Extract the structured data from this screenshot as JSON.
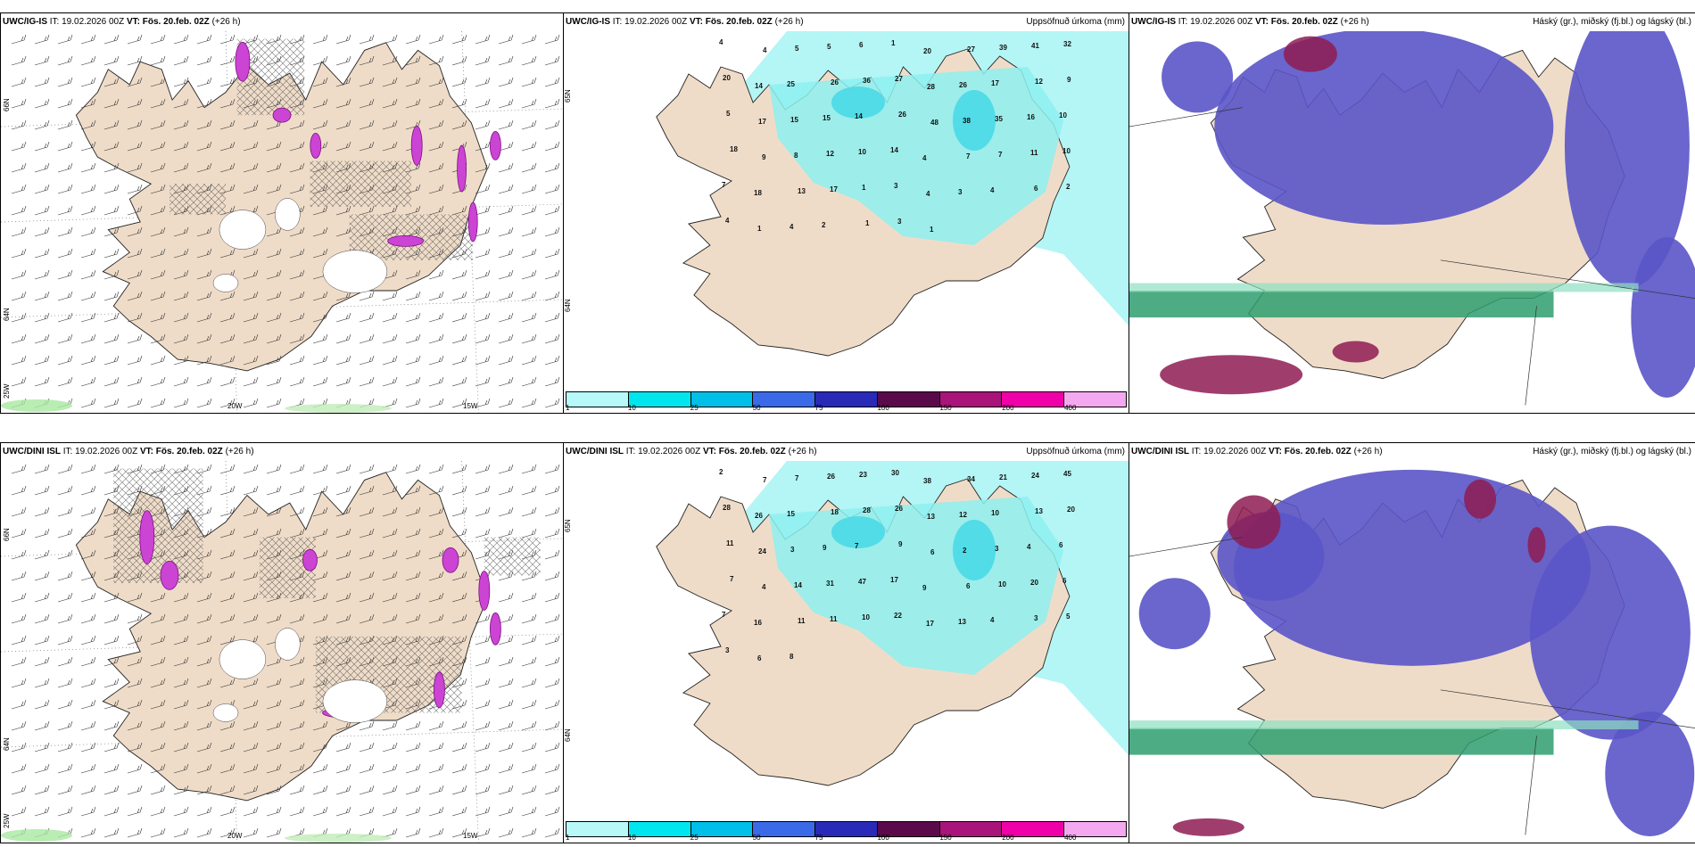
{
  "panels": [
    {
      "model": "UWC/IG-IS",
      "it_label": "IT:",
      "it_value": "19.02.2026 00Z",
      "vt_label": "VT:",
      "vt_value": "Fös. 20.feb. 02Z",
      "lead": "(+26 h)",
      "right_title": "",
      "lat_labels": [
        "66N",
        "64N",
        "25W"
      ],
      "lon_labels": [
        "20W",
        "15W"
      ]
    },
    {
      "model": "UWC/IG-IS",
      "it_label": "IT:",
      "it_value": "19.02.2026 00Z",
      "vt_label": "VT:",
      "vt_value": "Fös. 20.feb. 02Z",
      "lead": "(+26 h)",
      "right_title": "Uppsöfnuð úrkoma (mm)",
      "side_labels": [
        "65N",
        "64N"
      ],
      "precip_values": [
        "4",
        "4",
        "5",
        "5",
        "6",
        "1",
        "20",
        "27",
        "39",
        "41",
        "32",
        "20",
        "14",
        "25",
        "26",
        "36",
        "27",
        "28",
        "26",
        "17",
        "12",
        "9",
        "5",
        "17",
        "15",
        "15",
        "14",
        "26",
        "48",
        "38",
        "35",
        "16",
        "10",
        "18",
        "9",
        "8",
        "12",
        "10",
        "14",
        "4",
        "7",
        "7",
        "11",
        "10",
        "7",
        "18",
        "13",
        "17",
        "1",
        "3",
        "4",
        "3",
        "4",
        "6",
        "2",
        "4",
        "1",
        "4",
        "2",
        "1",
        "3",
        "1"
      ]
    },
    {
      "model": "UWC/IG-IS",
      "it_label": "IT:",
      "it_value": "19.02.2026 00Z",
      "vt_label": "VT:",
      "vt_value": "Fös. 20.feb. 02Z",
      "lead": "(+26 h)",
      "right_title": "Háský (gr.), miðský (fj.bl.) og lágský (bl.)"
    },
    {
      "model": "UWC/DINI ISL",
      "it_label": "IT:",
      "it_value": "19.02.2026 00Z",
      "vt_label": "VT:",
      "vt_value": "Fös. 20.feb. 02Z",
      "lead": "(+26 h)",
      "right_title": "",
      "lat_labels": [
        "66N",
        "64N",
        "25W"
      ],
      "lon_labels": [
        "20W",
        "15W"
      ]
    },
    {
      "model": "UWC/DINI ISL",
      "it_label": "IT:",
      "it_value": "19.02.2026 00Z",
      "vt_label": "VT:",
      "vt_value": "Fös. 20.feb. 02Z",
      "lead": "(+26 h)",
      "right_title": "Uppsöfnuð úrkoma (mm)",
      "side_labels": [
        "65N",
        "64N"
      ],
      "precip_values": [
        "2",
        "7",
        "7",
        "26",
        "23",
        "30",
        "38",
        "34",
        "21",
        "24",
        "45",
        "28",
        "26",
        "15",
        "18",
        "28",
        "26",
        "13",
        "12",
        "10",
        "13",
        "20",
        "11",
        "24",
        "3",
        "9",
        "7",
        "9",
        "6",
        "2",
        "3",
        "4",
        "6",
        "7",
        "4",
        "14",
        "31",
        "47",
        "17",
        "9",
        "6",
        "10",
        "20",
        "6",
        "7",
        "16",
        "11",
        "11",
        "10",
        "22",
        "17",
        "13",
        "4",
        "3",
        "5",
        "3",
        "6",
        "8"
      ]
    },
    {
      "model": "UWC/DINI ISL",
      "it_label": "IT:",
      "it_value": "19.02.2026 00Z",
      "vt_label": "VT:",
      "vt_value": "Fös. 20.feb. 02Z",
      "lead": "(+26 h)",
      "right_title": "Háský (gr.), miðský (fj.bl.) og lágský (bl.)"
    }
  ],
  "colorbar": {
    "labels": [
      "1",
      "10",
      "25",
      "50",
      "75",
      "100",
      "150",
      "200",
      "400"
    ],
    "colors": [
      "#b7f8f8",
      "#00e6ee",
      "#00bfe8",
      "#3a6ae8",
      "#2a2ab8",
      "#5a0a4a",
      "#a8147a",
      "#f000a8",
      "#f4a8f0"
    ]
  },
  "land_color": "#efdcc8",
  "precip_shade_color": "#b4f5f5"
}
